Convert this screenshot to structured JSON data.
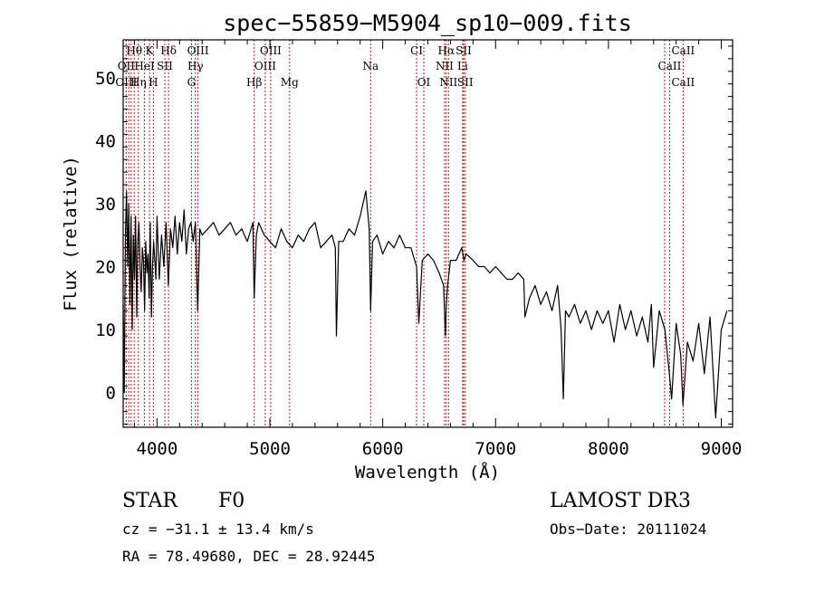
{
  "chart_data": {
    "type": "line",
    "title": "spec−55859−M5904_sp10−009.fits",
    "xlabel": "Wavelength (Å)",
    "ylabel": "Flux (relative)",
    "xlim": [
      3700,
      9100
    ],
    "ylim": [
      -5.5,
      56
    ],
    "xticks": [
      4000,
      5000,
      6000,
      7000,
      8000,
      9000
    ],
    "yticks": [
      0,
      10,
      20,
      30,
      40,
      50
    ],
    "series": [
      {
        "name": "spectrum",
        "x": [
          3700,
          3710,
          3720,
          3730,
          3740,
          3750,
          3760,
          3770,
          3780,
          3790,
          3800,
          3810,
          3820,
          3830,
          3840,
          3850,
          3860,
          3870,
          3880,
          3890,
          3900,
          3910,
          3920,
          3930,
          3940,
          3950,
          3960,
          3970,
          3980,
          3990,
          4000,
          4020,
          4040,
          4060,
          4080,
          4100,
          4120,
          4140,
          4160,
          4180,
          4200,
          4220,
          4240,
          4260,
          4280,
          4300,
          4320,
          4340,
          4360,
          4380,
          4400,
          4450,
          4500,
          4550,
          4600,
          4650,
          4700,
          4750,
          4800,
          4850,
          4861,
          4880,
          4900,
          4950,
          5000,
          5050,
          5100,
          5150,
          5200,
          5250,
          5300,
          5350,
          5400,
          5450,
          5500,
          5550,
          5580,
          5590,
          5610,
          5650,
          5700,
          5750,
          5800,
          5850,
          5880,
          5893,
          5910,
          5950,
          6000,
          6050,
          6100,
          6150,
          6200,
          6250,
          6300,
          6320,
          6350,
          6400,
          6450,
          6500,
          6540,
          6555,
          6563,
          6575,
          6600,
          6650,
          6700,
          6720,
          6740,
          6800,
          6850,
          6900,
          6950,
          7000,
          7050,
          7100,
          7150,
          7200,
          7250,
          7260,
          7300,
          7350,
          7400,
          7450,
          7500,
          7550,
          7580,
          7600,
          7620,
          7650,
          7700,
          7750,
          7800,
          7850,
          7900,
          7950,
          8000,
          8050,
          8100,
          8150,
          8200,
          8250,
          8300,
          8350,
          8380,
          8400,
          8450,
          8500,
          8540,
          8560,
          8600,
          8640,
          8660,
          8700,
          8750,
          8800,
          8850,
          8900,
          8950,
          9000,
          9050
        ],
        "values": [
          14,
          0,
          25,
          32,
          20,
          30,
          14,
          28,
          10,
          25,
          18,
          28,
          12,
          24,
          27,
          20,
          16,
          23,
          21,
          13,
          24,
          19,
          22,
          15,
          27,
          12,
          20,
          24,
          21,
          18,
          28,
          18,
          25,
          20,
          27,
          17,
          26,
          23,
          28,
          22,
          27,
          24,
          29,
          22,
          26,
          27,
          24,
          27,
          13,
          26,
          25,
          26,
          27,
          25,
          26,
          27,
          25,
          26,
          24,
          27,
          15,
          25,
          27,
          25,
          24,
          23,
          26,
          24,
          23,
          25,
          24,
          26,
          27,
          23,
          24,
          25,
          23,
          9,
          24,
          24,
          26,
          25,
          28,
          32,
          26,
          13,
          24,
          25,
          22,
          24,
          23,
          25,
          23,
          23,
          20,
          11,
          21,
          22,
          21,
          19,
          17,
          9,
          14,
          17,
          21,
          21,
          23,
          21,
          22,
          21,
          20,
          20,
          19,
          20,
          19,
          18,
          18,
          19,
          18,
          12,
          15,
          17,
          14,
          16,
          13,
          17,
          10,
          -1,
          13,
          12,
          14,
          11,
          13,
          10,
          13,
          11,
          13,
          8,
          14,
          10,
          13,
          9,
          12,
          8,
          14,
          4,
          13,
          10,
          3,
          -1,
          11,
          6,
          -2,
          8,
          5,
          11,
          3,
          12,
          -4,
          10,
          13
        ]
      }
    ],
    "lines": [
      {
        "label": "Hθ",
        "w": 3798,
        "row": 0
      },
      {
        "label": "K",
        "w": 3934,
        "row": 0
      },
      {
        "label": "Hδ",
        "w": 4102,
        "row": 0
      },
      {
        "label": "OIII",
        "w": 4363,
        "row": 0
      },
      {
        "label": "OIII",
        "w": 5007,
        "row": 0
      },
      {
        "label": "CI",
        "w": 6300,
        "row": 0
      },
      {
        "label": "Hα",
        "w": 6563,
        "row": 0
      },
      {
        "label": "SII",
        "w": 6717,
        "row": 0
      },
      {
        "label": "CaII",
        "w": 8662,
        "row": 0
      },
      {
        "label": "OII",
        "w": 3727,
        "row": 1
      },
      {
        "label": "HeI",
        "w": 3889,
        "row": 1
      },
      {
        "label": "SII",
        "w": 4069,
        "row": 1
      },
      {
        "label": "Hγ",
        "w": 4340,
        "row": 1
      },
      {
        "label": "OIII",
        "w": 4959,
        "row": 1
      },
      {
        "label": "Na",
        "w": 5893,
        "row": 1
      },
      {
        "label": "NII",
        "w": 6548,
        "row": 1
      },
      {
        "label": "Li",
        "w": 6708,
        "row": 1
      },
      {
        "label": "CaII",
        "w": 8542,
        "row": 1
      },
      {
        "label": "OIII",
        "w": 3727,
        "row": 2
      },
      {
        "label": "Hη",
        "w": 3835,
        "row": 2
      },
      {
        "label": "H",
        "w": 3968,
        "row": 2
      },
      {
        "label": "G",
        "w": 4305,
        "row": 2
      },
      {
        "label": "Hβ",
        "w": 4861,
        "row": 2
      },
      {
        "label": "Mg",
        "w": 5175,
        "row": 2
      },
      {
        "label": "OI",
        "w": 6364,
        "row": 2
      },
      {
        "label": "NII",
        "w": 6583,
        "row": 2
      },
      {
        "label": "SII",
        "w": 6731,
        "row": 2
      },
      {
        "label": "CaII",
        "w": 8662,
        "row": 2
      }
    ],
    "marker_lines": [
      3727,
      3750,
      3771,
      3798,
      3835,
      3889,
      3934,
      3968,
      4069,
      4102,
      4305,
      4340,
      4363,
      4861,
      4959,
      5007,
      5175,
      5893,
      6300,
      6364,
      6548,
      6563,
      6583,
      6708,
      6717,
      6731,
      8498,
      8542,
      8662
    ]
  },
  "info": {
    "object_class": "STAR",
    "subclass": "F0",
    "survey": "LAMOST DR3",
    "redshift": "cz = −31.1 ± 13.4 km/s",
    "obs_date": "Obs−Date: 20111024",
    "coords": "RA =  78.49680, DEC =  28.92445"
  },
  "colors": {
    "spectrum": "#000000",
    "marker": "#b22222",
    "axis": "#000000"
  }
}
